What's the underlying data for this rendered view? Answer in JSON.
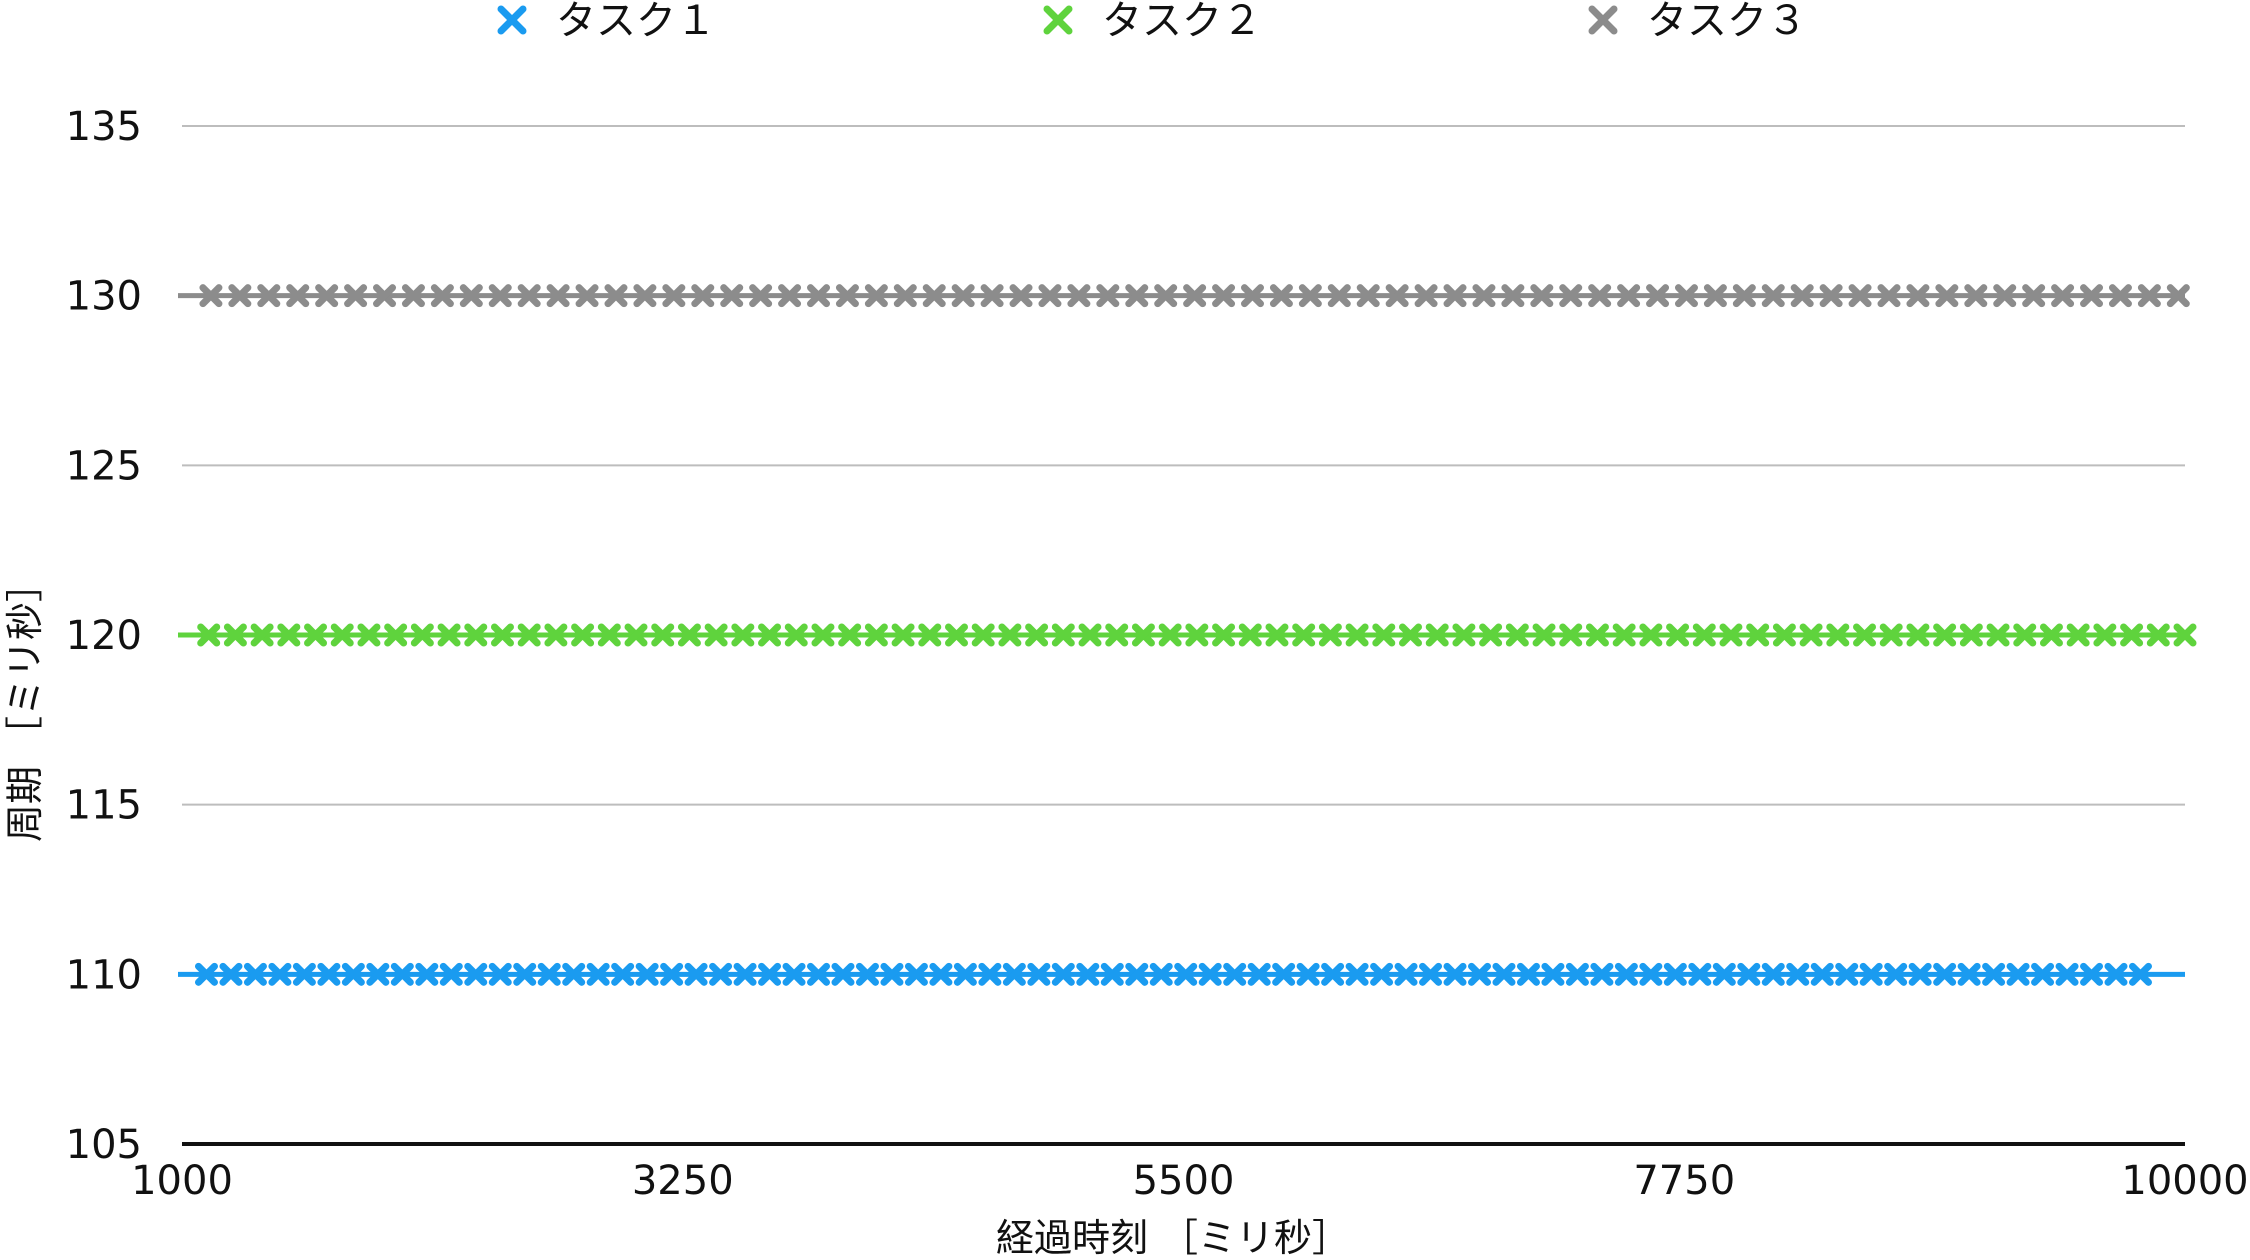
{
  "chart_data": {
    "type": "line",
    "xlabel": "経過時刻 ［ミリ秒］",
    "ylabel": "周期 ［ミリ秒］",
    "xlim": [
      1000,
      10000
    ],
    "ylim": [
      105,
      135
    ],
    "x_ticks": [
      1000,
      3250,
      5500,
      7750,
      10000
    ],
    "y_ticks": [
      105,
      110,
      115,
      120,
      125,
      130,
      135
    ],
    "y_gridlines": [
      110,
      115,
      120,
      125,
      130,
      135
    ],
    "grid": true,
    "legend_position": "top",
    "marker": "x",
    "series": [
      {
        "name": "タスク１",
        "color": "#1a9bf0",
        "x_start": 1110,
        "x_end": 9890,
        "step": 110,
        "value": 110
      },
      {
        "name": "タスク２",
        "color": "#5fd33d",
        "x_start": 1120,
        "x_end": 10000,
        "step": 120,
        "value": 120
      },
      {
        "name": "タスク３",
        "color": "#8c8c8c",
        "x_start": 1130,
        "x_end": 9970,
        "step": 130,
        "value": 130
      }
    ]
  }
}
